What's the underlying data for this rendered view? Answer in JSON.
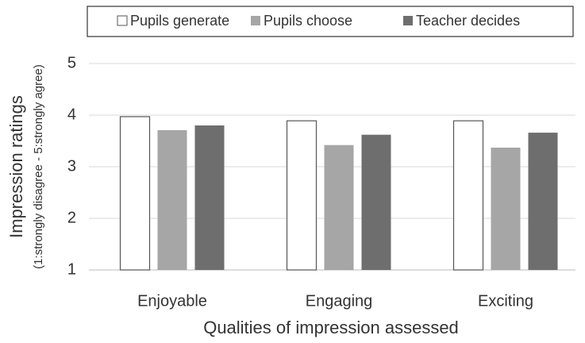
{
  "chart_data": {
    "type": "bar",
    "ylabel": [
      "Impression ratings",
      "(1:strongly disagree - 5:strongly agree)"
    ],
    "xlabel": "Qualities of impression assessed",
    "categories": [
      "Enjoyable",
      "Engaging",
      "Exciting"
    ],
    "series": [
      {
        "name": "Pupils generate",
        "color": "#ffffff",
        "edgecolor": "#555555",
        "values": [
          3.97,
          3.89,
          3.89
        ]
      },
      {
        "name": "Pupils choose",
        "color": "#a6a6a6",
        "values": [
          3.71,
          3.42,
          3.37
        ]
      },
      {
        "name": "Teacher decides",
        "color": "#6e6e6e",
        "values": [
          3.8,
          3.62,
          3.66
        ]
      }
    ],
    "ylim": [
      1,
      5
    ],
    "yticks": [
      1,
      2,
      3,
      4,
      5
    ],
    "grid": true,
    "legend": "top"
  }
}
